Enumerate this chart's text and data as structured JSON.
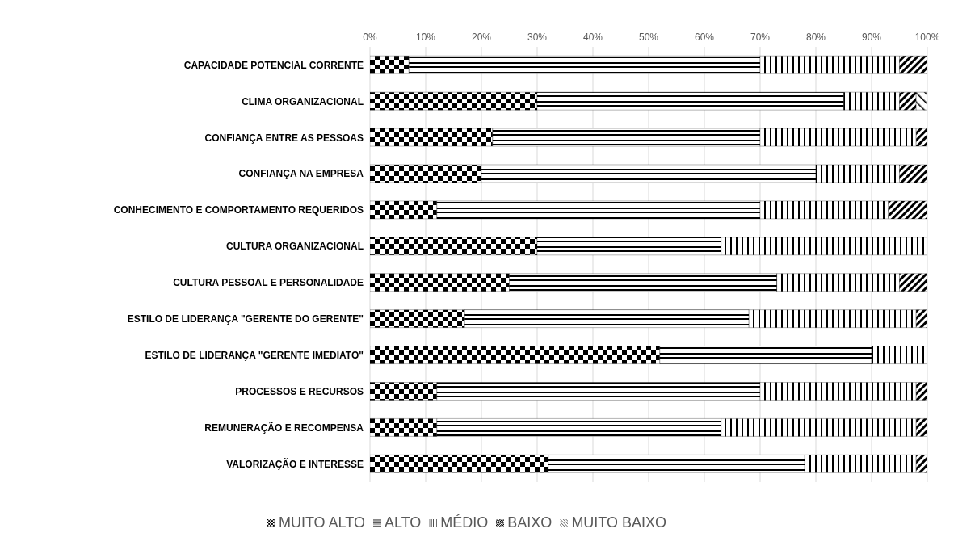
{
  "chart_data": {
    "type": "bar",
    "orientation": "horizontal",
    "stacked": true,
    "categories": [
      "CAPACIDADE POTENCIAL CORRENTE",
      "CLIMA ORGANIZACIONAL",
      "CONFIANÇA ENTRE AS PESSOAS",
      "CONFIANÇA NA EMPRESA",
      "CONHECIMENTO E COMPORTAMENTO REQUERIDOS",
      "CULTURA ORGANIZACIONAL",
      "CULTURA PESSOAL E PERSONALIDADE",
      "ESTILO DE LIDERANÇA \"GERENTE DO GERENTE\"",
      "ESTILO DE LIDERANÇA \"GERENTE IMEDIATO\"",
      "PROCESSOS E RECURSOS",
      "REMUNERAÇÃO E RECOMPENSA",
      "VALORIZAÇÃO E INTERESSE"
    ],
    "series": [
      {
        "name": "MUITO ALTO",
        "color": "#000000",
        "values": [
          7,
          30,
          22,
          20,
          12,
          30,
          25,
          17,
          52,
          12,
          12,
          32
        ]
      },
      {
        "name": "ALTO",
        "color": "#000000",
        "values": [
          63,
          55,
          48,
          60,
          58,
          33,
          48,
          51,
          38,
          58,
          51,
          46
        ]
      },
      {
        "name": "MÉDIO",
        "color": "#000000",
        "values": [
          25,
          10,
          28,
          15,
          23,
          37,
          22,
          30,
          10,
          28,
          35,
          20
        ]
      },
      {
        "name": "BAIXO",
        "color": "#000000",
        "values": [
          5,
          3,
          2,
          5,
          7,
          0,
          5,
          2,
          0,
          2,
          2,
          2
        ]
      },
      {
        "name": "MUITO BAIXO",
        "color": "#000000",
        "values": [
          0,
          2,
          0,
          0,
          0,
          0,
          0,
          0,
          0,
          0,
          0,
          0
        ]
      }
    ],
    "xlim": [
      0,
      100
    ],
    "xticks": [
      {
        "value": 0,
        "label": "0%"
      },
      {
        "value": 10,
        "label": "10%"
      },
      {
        "value": 20,
        "label": "20%"
      },
      {
        "value": 30,
        "label": "30%"
      },
      {
        "value": 40,
        "label": "40%"
      },
      {
        "value": 50,
        "label": "50%"
      },
      {
        "value": 60,
        "label": "60%"
      },
      {
        "value": 70,
        "label": "70%"
      },
      {
        "value": 80,
        "label": "80%"
      },
      {
        "value": 90,
        "label": "90%"
      },
      {
        "value": 100,
        "label": "100%"
      }
    ],
    "grid": "x",
    "legend": "bottom"
  }
}
